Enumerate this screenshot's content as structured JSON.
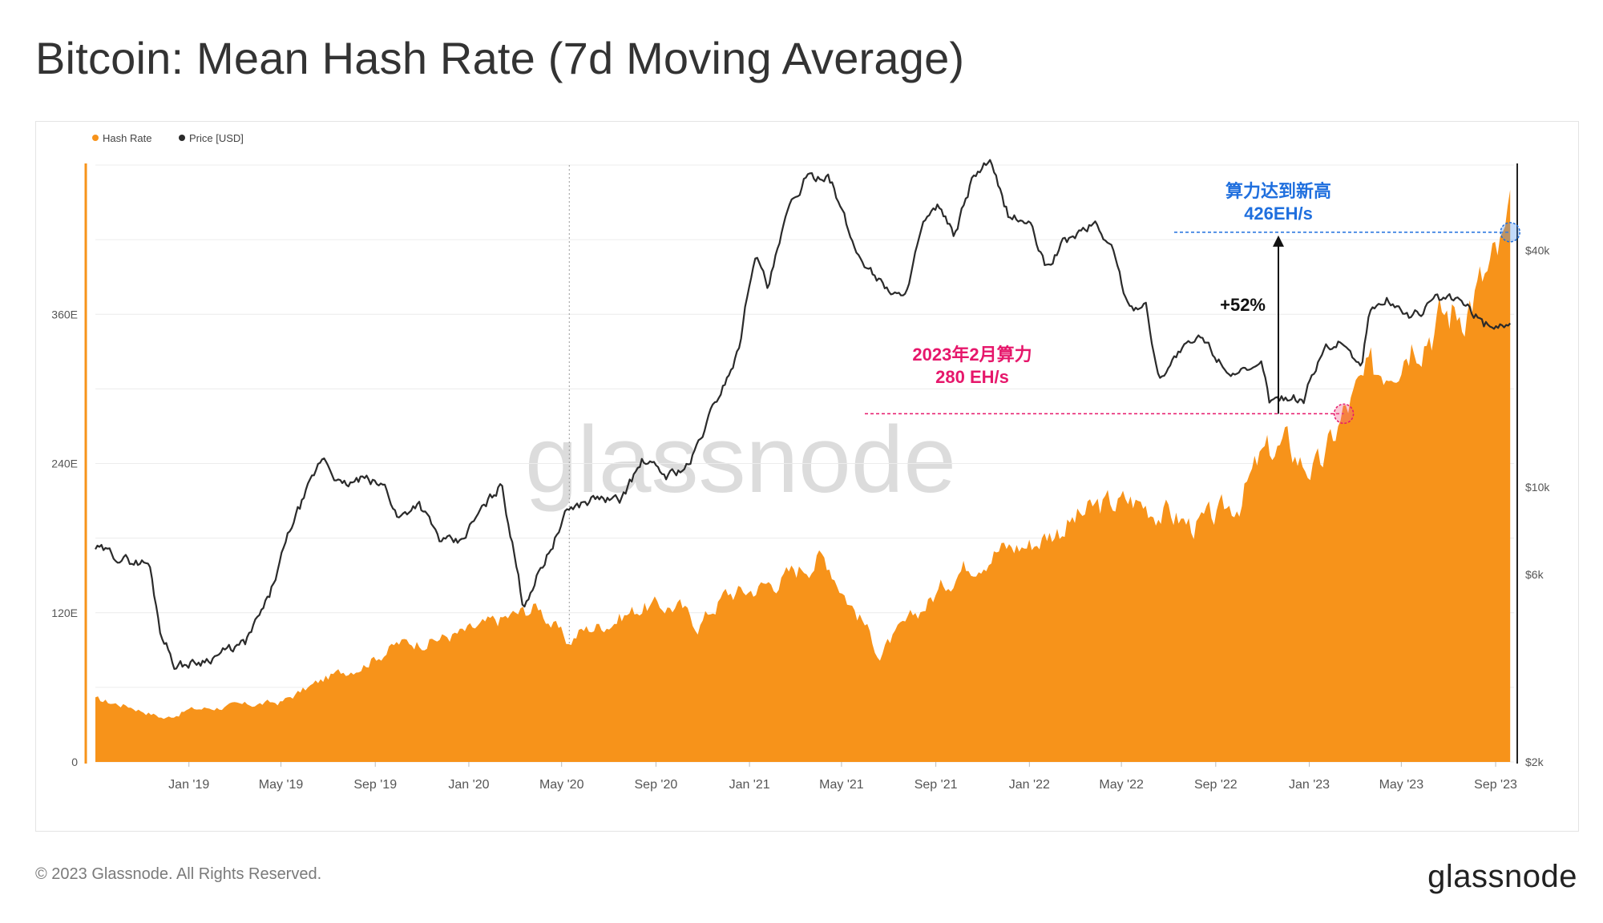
{
  "title": "Bitcoin: Mean Hash Rate (7d Moving Average)",
  "footer": {
    "copyright": "© 2023 Glassnode. All Rights Reserved.",
    "logo": "glassnode"
  },
  "colors": {
    "hash_rate": "#f7931a",
    "price": "#2b2b2b",
    "blue_annotation": "#1f6fde",
    "pink_annotation": "#e6176b",
    "grid": "#ececec",
    "watermark": "#dcdcdc"
  },
  "chart_data": {
    "type": "area",
    "legend": [
      {
        "name": "Hash Rate",
        "color": "#f7931a"
      },
      {
        "name": "Price [USD]",
        "color": "#2b2b2b"
      }
    ],
    "legend_position": "top-left",
    "watermark": "glassnode",
    "grid": true,
    "x_range": [
      "2018-09-01",
      "2023-09-25"
    ],
    "x_ticks": [
      "Jan '19",
      "May '19",
      "Sep '19",
      "Jan '20",
      "May '20",
      "Sep '20",
      "Jan '21",
      "May '21",
      "Sep '21",
      "Jan '22",
      "May '22",
      "Sep '22",
      "Jan '23",
      "May '23",
      "Sep '23"
    ],
    "x_tick_dates": [
      "2019-01-01",
      "2019-05-01",
      "2019-09-01",
      "2020-01-01",
      "2020-05-01",
      "2020-09-01",
      "2021-01-01",
      "2021-05-01",
      "2021-09-01",
      "2022-01-01",
      "2022-05-01",
      "2022-09-01",
      "2023-01-01",
      "2023-05-01",
      "2023-09-01"
    ],
    "left_axis": {
      "unit": "EH/s",
      "ticks": [
        "0",
        "120E",
        "240E",
        "360E"
      ],
      "tick_values": [
        0,
        120,
        240,
        360
      ],
      "range": [
        0,
        480
      ]
    },
    "right_axis": {
      "scale": "log",
      "ticks": [
        "$2k",
        "$6k",
        "$10k",
        "$40k"
      ],
      "tick_values": [
        2000,
        6000,
        10000,
        40000
      ],
      "range": [
        2000,
        66000
      ]
    },
    "series": [
      {
        "name": "Hash Rate",
        "axis": "left",
        "type": "area",
        "x": [
          "2018-09-01",
          "2018-10-15",
          "2018-12-01",
          "2019-01-01",
          "2019-03-01",
          "2019-05-01",
          "2019-07-01",
          "2019-08-15",
          "2019-10-01",
          "2019-11-15",
          "2020-01-01",
          "2020-02-15",
          "2020-04-01",
          "2020-05-10",
          "2020-05-25",
          "2020-07-01",
          "2020-08-15",
          "2020-10-01",
          "2020-10-25",
          "2020-12-01",
          "2021-01-01",
          "2021-02-15",
          "2021-04-01",
          "2021-04-15",
          "2021-05-10",
          "2021-06-01",
          "2021-06-20",
          "2021-07-01",
          "2021-08-01",
          "2021-09-01",
          "2021-10-01",
          "2021-11-15",
          "2022-01-01",
          "2022-02-15",
          "2022-04-01",
          "2022-05-15",
          "2022-07-01",
          "2022-08-01",
          "2022-09-01",
          "2022-10-01",
          "2022-11-01",
          "2022-12-01",
          "2022-12-25",
          "2023-01-15",
          "2023-02-15",
          "2023-03-15",
          "2023-04-15",
          "2023-05-15",
          "2023-06-15",
          "2023-07-15",
          "2023-08-15",
          "2023-09-10",
          "2023-09-20"
        ],
        "values": [
          50,
          45,
          35,
          42,
          45,
          48,
          68,
          78,
          95,
          98,
          105,
          115,
          125,
          95,
          105,
          112,
          125,
          125,
          110,
          135,
          138,
          148,
          165,
          160,
          130,
          110,
          85,
          95,
          115,
          135,
          155,
          170,
          175,
          190,
          205,
          210,
          200,
          190,
          195,
          210,
          245,
          255,
          240,
          235,
          280,
          305,
          325,
          345,
          355,
          365,
          385,
          410,
          426
        ]
      },
      {
        "name": "Price [USD]",
        "axis": "right",
        "type": "line",
        "x": [
          "2018-09-01",
          "2018-10-15",
          "2018-11-10",
          "2018-11-25",
          "2018-12-15",
          "2019-01-15",
          "2019-02-15",
          "2019-03-15",
          "2019-04-15",
          "2019-05-15",
          "2019-06-25",
          "2019-07-20",
          "2019-08-15",
          "2019-09-15",
          "2019-10-01",
          "2019-10-27",
          "2019-11-25",
          "2019-12-20",
          "2020-01-15",
          "2020-02-13",
          "2020-03-12",
          "2020-03-18",
          "2020-04-15",
          "2020-05-10",
          "2020-06-15",
          "2020-07-15",
          "2020-08-15",
          "2020-09-15",
          "2020-10-15",
          "2020-11-15",
          "2020-12-17",
          "2021-01-08",
          "2021-01-25",
          "2021-02-20",
          "2021-03-13",
          "2021-04-14",
          "2021-05-19",
          "2021-06-22",
          "2021-07-20",
          "2021-08-15",
          "2021-09-07",
          "2021-09-25",
          "2021-10-20",
          "2021-11-10",
          "2021-12-05",
          "2022-01-01",
          "2022-01-22",
          "2022-02-15",
          "2022-03-28",
          "2022-04-20",
          "2022-05-12",
          "2022-06-01",
          "2022-06-18",
          "2022-07-15",
          "2022-08-14",
          "2022-09-15",
          "2022-10-15",
          "2022-11-01",
          "2022-11-10",
          "2022-12-01",
          "2022-12-25",
          "2023-01-20",
          "2023-02-15",
          "2023-03-10",
          "2023-03-20",
          "2023-04-14",
          "2023-05-15",
          "2023-06-15",
          "2023-07-15",
          "2023-08-17",
          "2023-09-10",
          "2023-09-20"
        ],
        "values": [
          7000,
          6500,
          6400,
          4300,
          3500,
          3600,
          3800,
          4000,
          5200,
          8000,
          12000,
          10000,
          10500,
          10000,
          8300,
          9200,
          7300,
          7200,
          8600,
          10200,
          5000,
          5300,
          6900,
          8800,
          9400,
          9200,
          11700,
          10700,
          11400,
          16000,
          22000,
          40000,
          32000,
          50000,
          60000,
          63000,
          40000,
          33000,
          30000,
          46000,
          52000,
          43000,
          62000,
          67000,
          49000,
          47000,
          36000,
          42000,
          47000,
          40000,
          28000,
          30000,
          19000,
          22000,
          24000,
          20000,
          19200,
          20500,
          16500,
          17000,
          16800,
          22800,
          23500,
          20000,
          28000,
          30000,
          27000,
          30000,
          30000,
          26000,
          25800,
          26500
        ]
      }
    ],
    "annotations": {
      "ath": {
        "title": "算力达到新高",
        "value_label": "426EH/s",
        "value": 426,
        "date": "2023-09-20"
      },
      "feb_2023": {
        "title": "2023年2月算力",
        "value_label": "280 EH/s",
        "value": 280,
        "date": "2023-02-15"
      },
      "change": {
        "label": "+52%"
      }
    },
    "reference_line_date": "2020-05-11"
  }
}
